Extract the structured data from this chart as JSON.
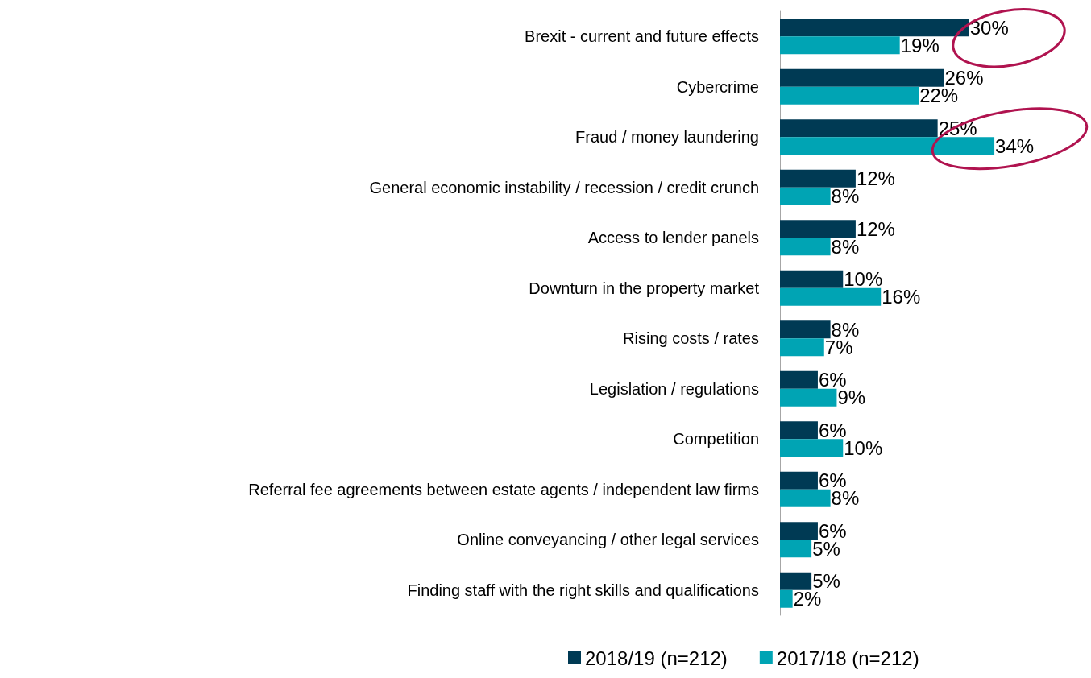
{
  "chart_data": {
    "type": "bar",
    "orientation": "horizontal",
    "legend": "bottom",
    "categories": [
      "Brexit - current and future effects",
      "Cybercrime",
      "Fraud / money laundering",
      "General economic instability / recession / credit crunch",
      "Access to lender panels",
      "Downturn in the property market",
      "Rising costs / rates",
      "Legislation / regulations",
      "Competition",
      "Referral fee agreements between estate agents / independent law firms",
      "Online conveyancing / other legal services",
      "Finding staff with the right skills and qualifications"
    ],
    "series": [
      {
        "name": "2018/19 (n=212)",
        "color": "#003a54",
        "values": [
          30,
          26,
          25,
          12,
          12,
          10,
          8,
          6,
          6,
          6,
          6,
          5
        ],
        "value_labels": [
          "30%",
          "26%",
          "25%",
          "12%",
          "12%",
          "10%",
          "8%",
          "6%",
          "6%",
          "6%",
          "6%",
          "5%"
        ]
      },
      {
        "name": "2017/18 (n=212)",
        "color": "#00a4b4",
        "values": [
          19,
          22,
          34,
          8,
          8,
          16,
          7,
          9,
          10,
          8,
          5,
          2
        ],
        "value_labels": [
          "19%",
          "22%",
          "34%",
          "8%",
          "8%",
          "16%",
          "7%",
          "9%",
          "10%",
          "8%",
          "5%",
          "2%"
        ]
      }
    ]
  }
}
